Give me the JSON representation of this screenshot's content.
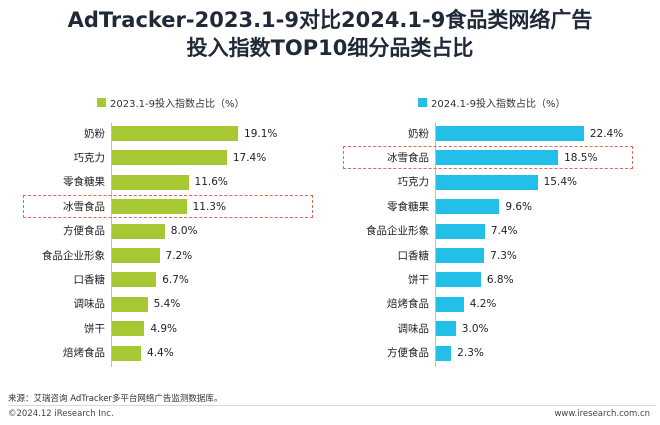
{
  "title_line1": "AdTracker-2023.1-9对比2024.1-9食品类网络广告",
  "title_line2": "投入指数TOP10细分品类占比",
  "chart_data": [
    {
      "type": "bar",
      "orientation": "horizontal",
      "legend": "2023.1-9投入指数占比（%）",
      "color": "#a6c832",
      "categories": [
        "奶粉",
        "巧克力",
        "零食糖果",
        "冰雪食品",
        "方便食品",
        "食品企业形象",
        "口香糖",
        "调味品",
        "饼干",
        "焙烤食品"
      ],
      "values": [
        19.1,
        17.4,
        11.6,
        11.3,
        8.0,
        7.2,
        6.7,
        5.4,
        4.9,
        4.4
      ],
      "labels": [
        "19.1%",
        "17.4%",
        "11.6%",
        "11.3%",
        "8.0%",
        "7.2%",
        "6.7%",
        "5.4%",
        "4.9%",
        "4.4%"
      ],
      "highlight": "冰雪食品",
      "xlim": [
        0,
        25
      ]
    },
    {
      "type": "bar",
      "orientation": "horizontal",
      "legend": "2024.1-9投入指数占比（%）",
      "color": "#22c0e8",
      "categories": [
        "奶粉",
        "冰雪食品",
        "巧克力",
        "零食糖果",
        "食品企业形象",
        "口香糖",
        "饼干",
        "焙烤食品",
        "调味品",
        "方便食品"
      ],
      "values": [
        22.4,
        18.5,
        15.4,
        9.6,
        7.4,
        7.3,
        6.8,
        4.2,
        3.0,
        2.3
      ],
      "labels": [
        "22.4%",
        "18.5%",
        "15.4%",
        "9.6%",
        "7.4%",
        "7.3%",
        "6.8%",
        "4.2%",
        "3.0%",
        "2.3%"
      ],
      "highlight": "冰雪食品",
      "xlim": [
        0,
        25
      ]
    }
  ],
  "footer": {
    "source": "来源：艾瑞咨询 AdTracker多平台网络广告监测数据库。",
    "copyright": "©2024.12 iResearch Inc.",
    "website": "www.iresearch.com.cn"
  }
}
